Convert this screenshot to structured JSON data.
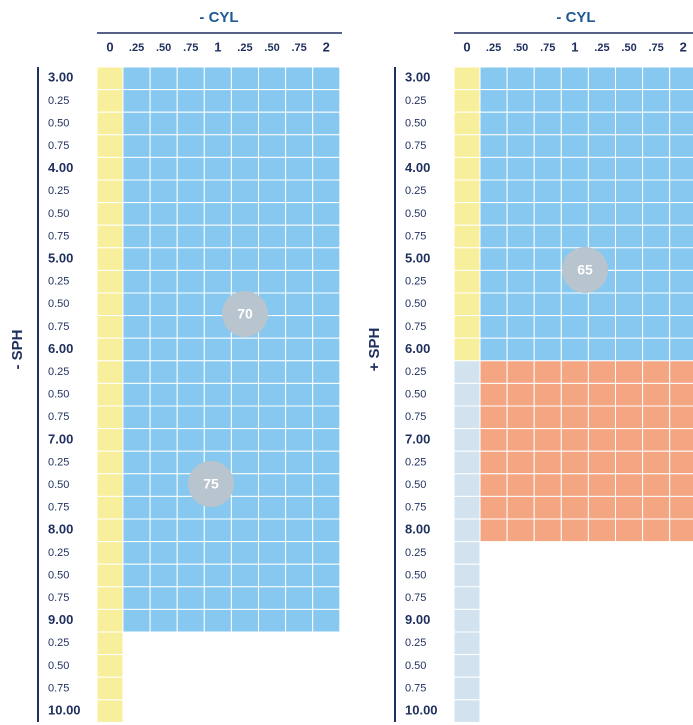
{
  "panels": [
    {
      "title": "- CYL",
      "axis_label": "- SPH",
      "columns": [
        "0",
        ".25",
        ".50",
        ".75",
        "1",
        ".25",
        ".50",
        ".75",
        "2"
      ],
      "rows": [
        "3.00",
        "0.25",
        "0.50",
        "0.75",
        "4.00",
        "0.25",
        "0.50",
        "0.75",
        "5.00",
        "0.25",
        "0.50",
        "0.75",
        "6.00",
        "0.25",
        "0.50",
        "0.75",
        "7.00",
        "0.25",
        "0.50",
        "0.75",
        "8.00",
        "0.25",
        "0.50",
        "0.75",
        "9.00",
        "0.25",
        "0.50",
        "0.75",
        "10.00"
      ],
      "badges": [
        "70",
        "75"
      ]
    },
    {
      "title": "- CYL",
      "axis_label": "+ SPH",
      "columns": [
        "0",
        ".25",
        ".50",
        ".75",
        "1",
        ".25",
        ".50",
        ".75",
        "2"
      ],
      "rows": [
        "3.00",
        "0.25",
        "0.50",
        "0.75",
        "4.00",
        "0.25",
        "0.50",
        "0.75",
        "5.00",
        "0.25",
        "0.50",
        "0.75",
        "6.00",
        "0.25",
        "0.50",
        "0.75",
        "7.00",
        "0.25",
        "0.50",
        "0.75",
        "8.00",
        "0.25",
        "0.50",
        "0.75",
        "9.00",
        "0.25",
        "0.50",
        "0.75",
        "10.00"
      ],
      "badges": [
        "65"
      ]
    }
  ]
}
